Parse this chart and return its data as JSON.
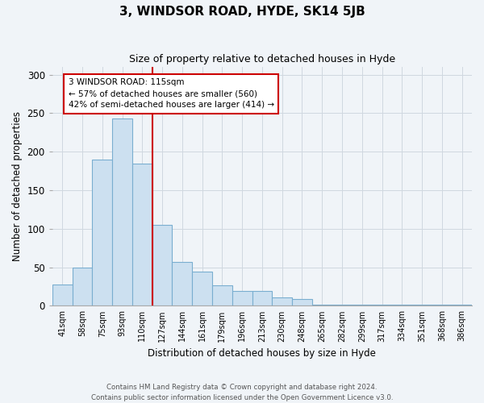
{
  "title": "3, WINDSOR ROAD, HYDE, SK14 5JB",
  "subtitle": "Size of property relative to detached houses in Hyde",
  "xlabel": "Distribution of detached houses by size in Hyde",
  "ylabel": "Number of detached properties",
  "bar_labels": [
    "41sqm",
    "58sqm",
    "75sqm",
    "93sqm",
    "110sqm",
    "127sqm",
    "144sqm",
    "161sqm",
    "179sqm",
    "196sqm",
    "213sqm",
    "230sqm",
    "248sqm",
    "265sqm",
    "282sqm",
    "299sqm",
    "317sqm",
    "334sqm",
    "351sqm",
    "368sqm",
    "386sqm"
  ],
  "bar_values": [
    28,
    50,
    190,
    243,
    185,
    105,
    57,
    44,
    27,
    19,
    19,
    11,
    9,
    2,
    2,
    2,
    2,
    1,
    2,
    1,
    2
  ],
  "bar_color": "#cce0f0",
  "bar_edge_color": "#7aaed0",
  "vline_x": 4.5,
  "vline_color": "#cc0000",
  "ylim": [
    0,
    310
  ],
  "annotation_text": "3 WINDSOR ROAD: 115sqm\n← 57% of detached houses are smaller (560)\n42% of semi-detached houses are larger (414) →",
  "footer_line1": "Contains HM Land Registry data © Crown copyright and database right 2024.",
  "footer_line2": "Contains public sector information licensed under the Open Government Licence v3.0.",
  "background_color": "#f0f4f8"
}
